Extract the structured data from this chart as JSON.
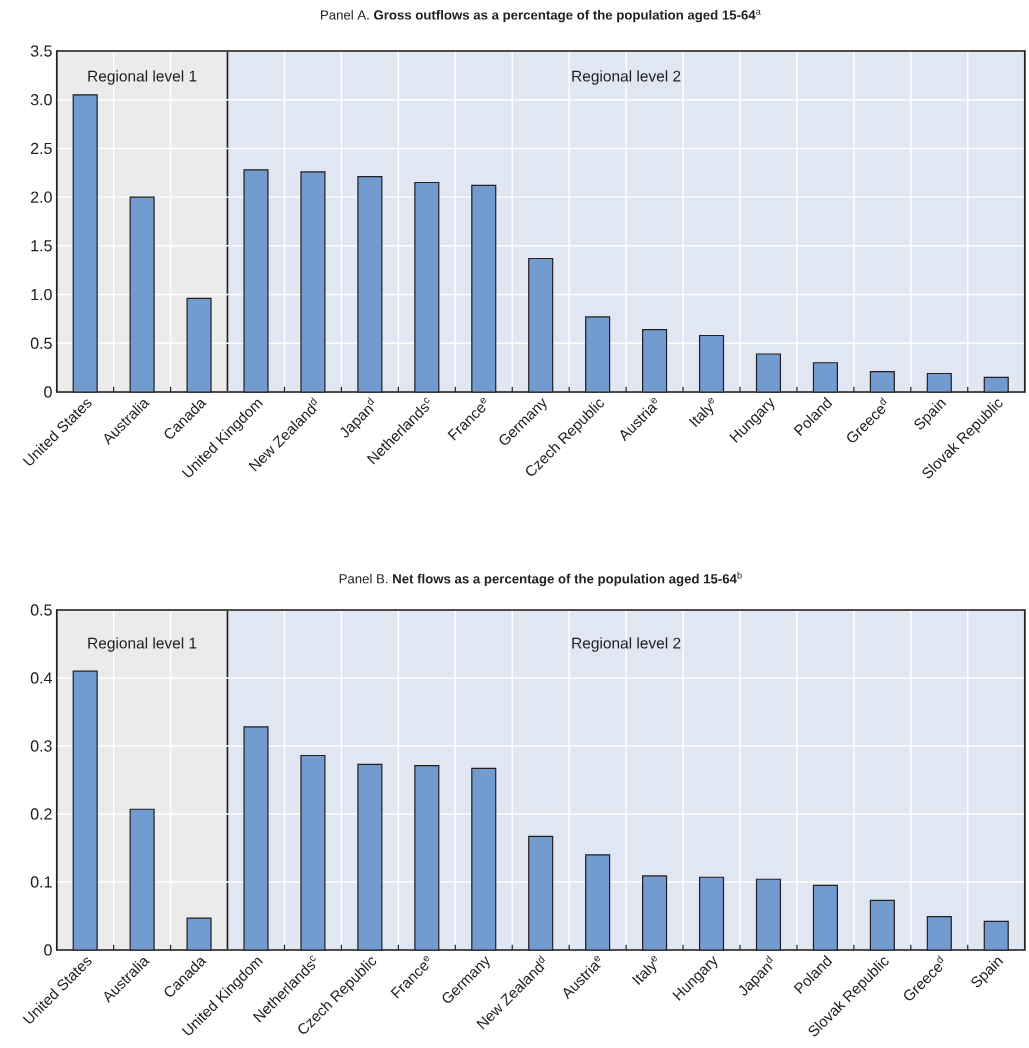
{
  "chart_data": [
    {
      "type": "bar",
      "title": "Panel A. **Gross outflows as a percentage of the population aged 15-64**$^{a}$",
      "categories": [
        "United States",
        "Australia",
        "Canada",
        "United Kingdom",
        "New Zealand$^{d}$",
        "Japan$^{d}$",
        "Netherlands$^{c}$",
        "France$^{e}$",
        "Germany",
        "Czech Republic",
        "Austria$^{e}$",
        "Italy$^{e}$",
        "Hungary",
        "Poland",
        "Greece$^{d}$",
        "Spain",
        "Slovak Republic"
      ],
      "values": [
        3.05,
        2.0,
        0.96,
        2.28,
        2.26,
        2.21,
        2.15,
        2.12,
        1.37,
        0.77,
        0.64,
        0.58,
        0.39,
        0.3,
        0.21,
        0.19,
        0.15
      ],
      "color": "#729bd0",
      "ylim": [
        0,
        3.5
      ],
      "yticks": [
        0,
        0.5,
        {
          "value": 1,
          "label": "1.0"
        },
        1.5,
        {
          "value": 2,
          "label": "2.0"
        },
        2.5,
        {
          "value": 3,
          "label": "3.0"
        },
        3.5
      ],
      "grid": true,
      "bands": [
        {
          "axis": "x",
          "from": "United States",
          "to": "Canada",
          "label": "Regional level 1",
          "color": "#ebebeb"
        },
        {
          "axis": "x",
          "from": "United Kingdom",
          "to": "Slovak Republic",
          "label": "Regional level 2",
          "color": "#e1e6f3"
        }
      ]
    },
    {
      "type": "bar",
      "title": "Panel B. **Net flows as a percentage of the population aged 15-64**$^{b}$",
      "categories": [
        "United States",
        "Australia",
        "Canada",
        "United Kingdom",
        "Netherlands$^{c}$",
        "Czech Republic",
        "France$^{e}$",
        "Germany",
        "New Zealand$^{d}$",
        "Austria$^{e}$",
        "Italy$^{e}$",
        "Hungary",
        "Japan$^{d}$",
        "Poland",
        "Slovak Republic",
        "Greece$^{d}$",
        "Spain"
      ],
      "values": [
        0.41,
        0.207,
        0.047,
        0.328,
        0.286,
        0.273,
        0.271,
        0.267,
        0.167,
        0.14,
        0.109,
        0.107,
        0.104,
        0.095,
        0.073,
        0.049,
        0.042
      ],
      "color": "#729bd0",
      "ylim": [
        0,
        0.5
      ],
      "yticks": [
        0,
        0.1,
        0.2,
        0.3,
        0.4,
        0.5
      ],
      "grid": true,
      "bands": [
        {
          "axis": "x",
          "from": "United States",
          "to": "Canada",
          "label": "Regional level 1",
          "color": "#ebebeb"
        },
        {
          "axis": "x",
          "from": "United Kingdom",
          "to": "Spain",
          "label": "Regional level 2",
          "color": "#e1e6f3"
        }
      ]
    }
  ]
}
